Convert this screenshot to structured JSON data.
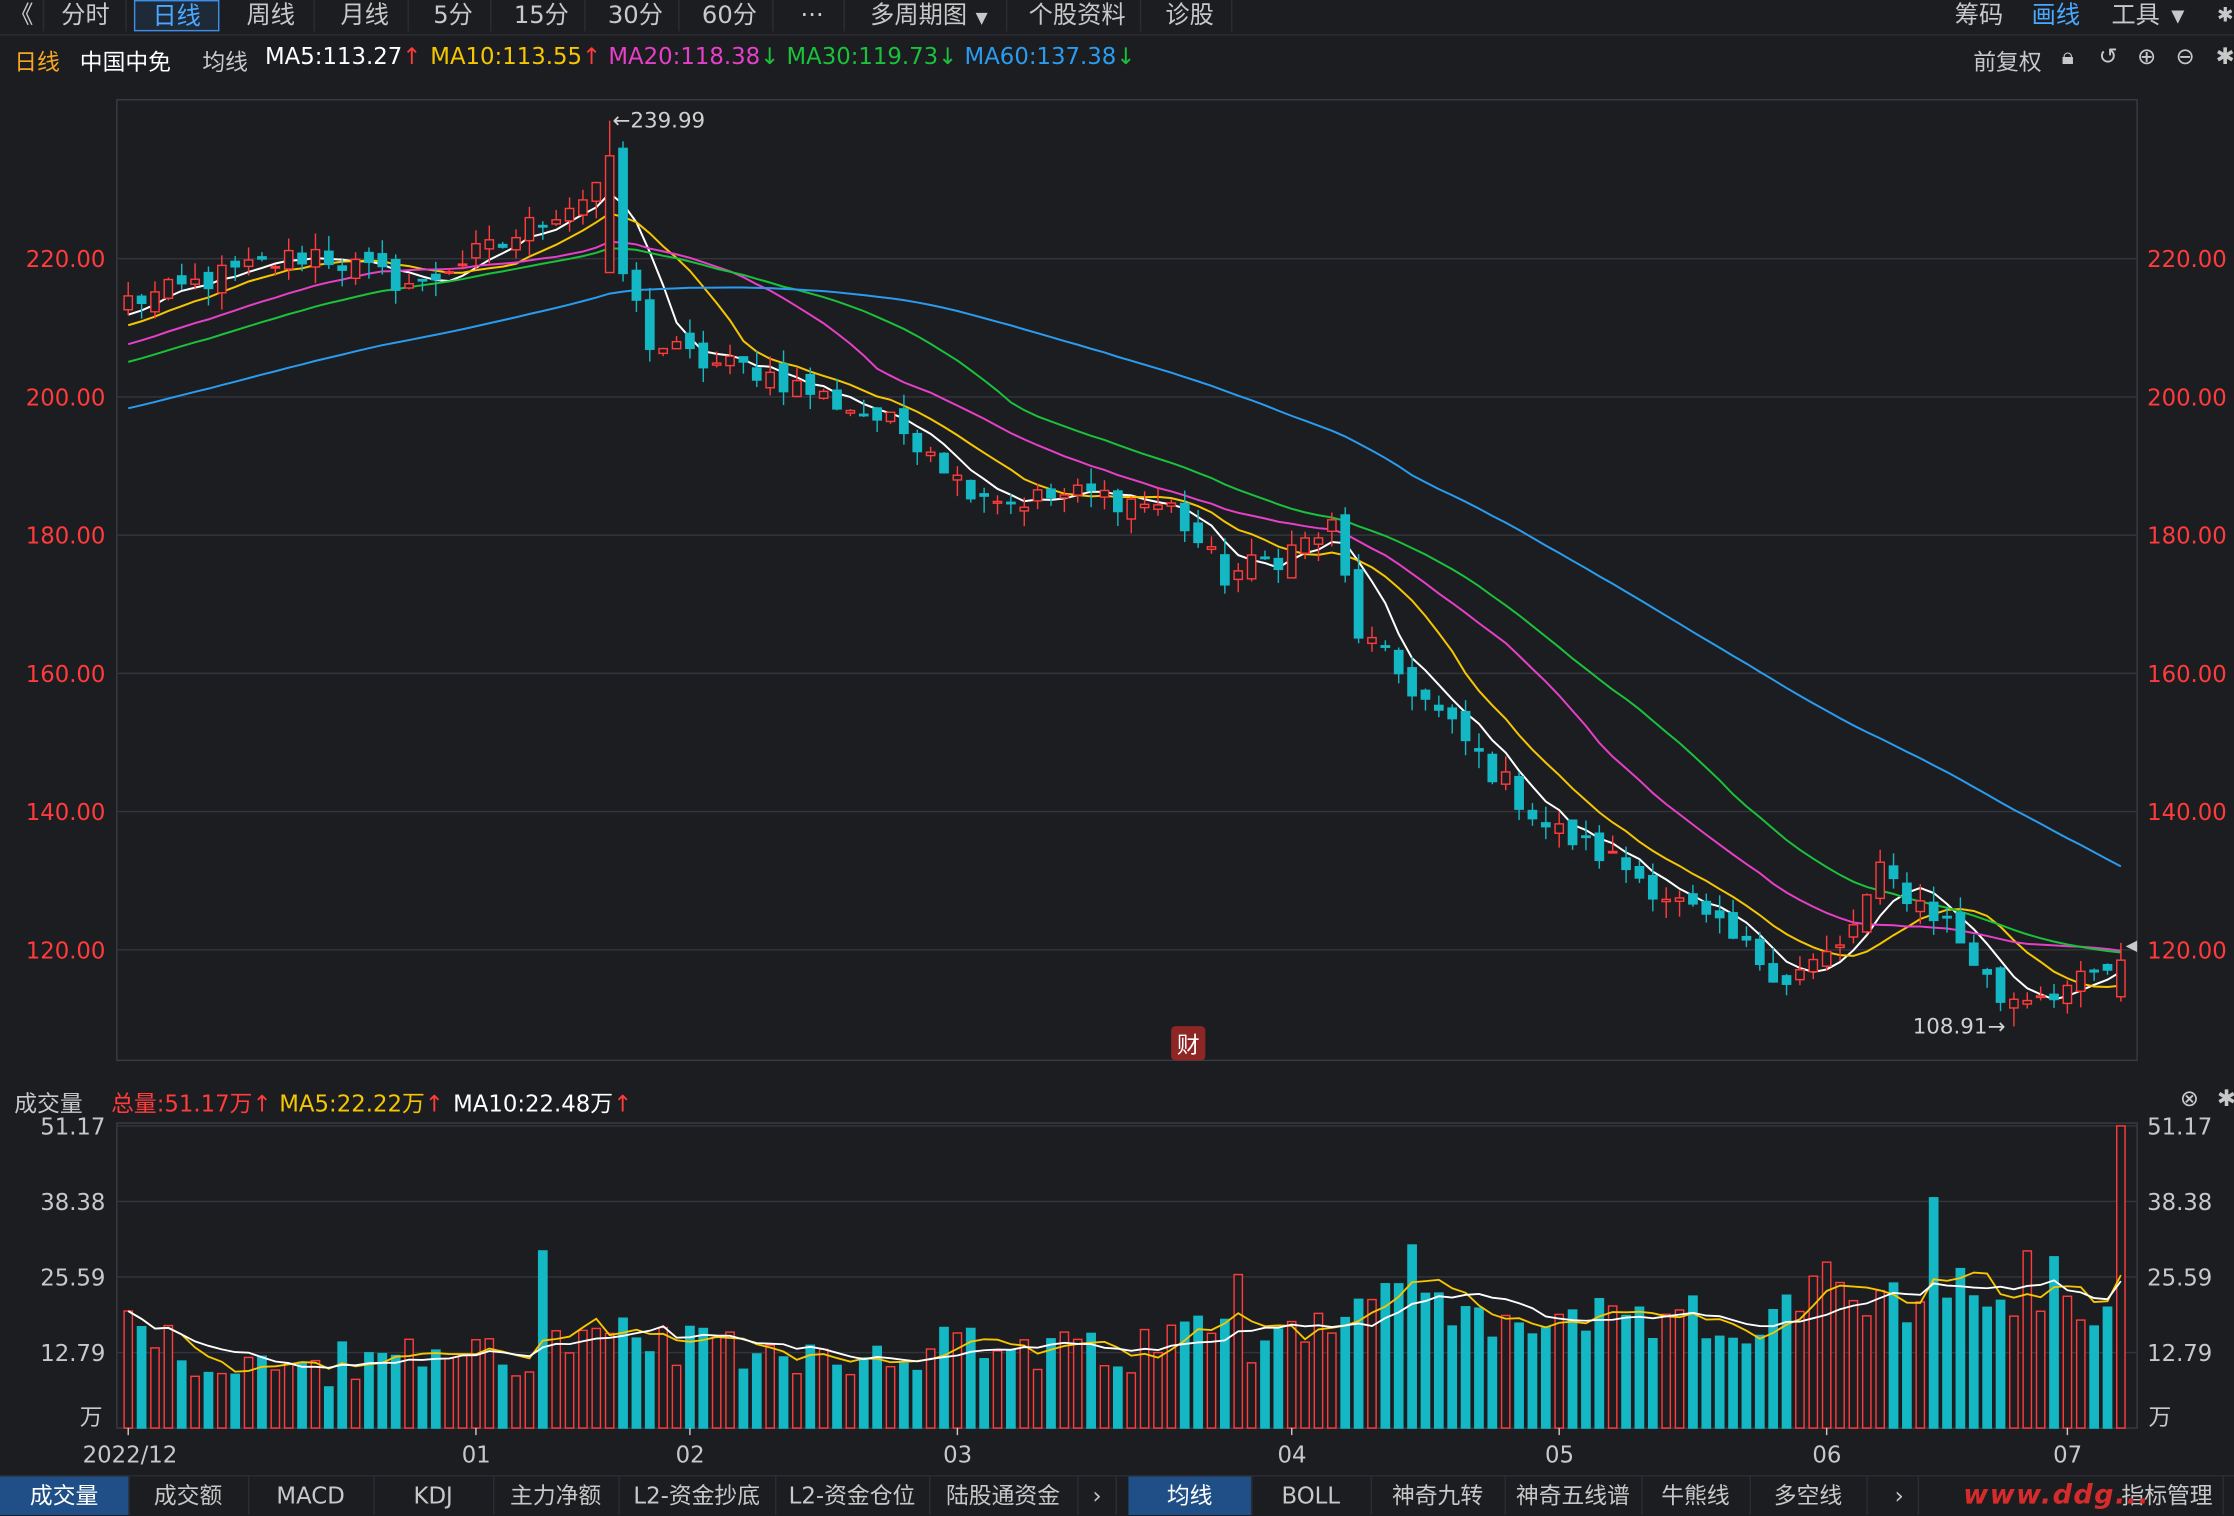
{
  "toolbar": {
    "back": "《",
    "tabs": [
      "分时",
      "日线",
      "周线",
      "月线",
      "5分",
      "15分",
      "30分",
      "60分",
      "···",
      "多周期图",
      "个股资料",
      "诊股"
    ],
    "active_tab": "日线",
    "right": [
      "筹码",
      "画线",
      "工具"
    ]
  },
  "ma_header": {
    "period": "日线",
    "stock": "中国中免",
    "label": "均线",
    "ma5": "MA5:113.27",
    "ma10": "MA10:113.55",
    "ma20": "MA20:118.38",
    "ma30": "MA30:119.73",
    "ma60": "MA60:137.38",
    "adjust": "前复权"
  },
  "vol_header": {
    "label": "成交量",
    "total": "总量:51.17万",
    "ma5": "MA5:22.22万",
    "ma10": "MA10:22.48万"
  },
  "bottom_tabs_left": [
    "成交量",
    "成交额",
    "MACD",
    "KDJ",
    "主力净额",
    "L2-资金抄底",
    "L2-资金仓位",
    "陆股通资金"
  ],
  "bottom_tabs_right": [
    "均线",
    "BOLL",
    "神奇九转",
    "神奇五线谱",
    "牛熊线",
    "多空线",
    "指标管理"
  ],
  "watermark": "www.ddg...",
  "colors": {
    "up": "#ff3b3b",
    "down": "#14b8c4",
    "ma5": "#ffffff",
    "ma10": "#f6c600",
    "ma20": "#e640c8",
    "ma30": "#19c23a",
    "ma60": "#2a9cf0"
  },
  "chart_data": {
    "type": "candlestick",
    "price_axis": {
      "min": 104,
      "max": 243,
      "ticks": [
        "220.00",
        "200.00",
        "180.00",
        "160.00",
        "140.00",
        "120.00"
      ]
    },
    "volume_axis": {
      "min": 0,
      "max": 51.17,
      "unit": "万",
      "ticks": [
        "51.17",
        "38.38",
        "25.59",
        "12.79"
      ]
    },
    "x_labels": [
      "2022/12",
      "01",
      "02",
      "03",
      "04",
      "05",
      "06",
      "07"
    ],
    "annotations": {
      "high": "←239.99",
      "low": "108.91→",
      "finance_badge": "财"
    },
    "waypoints": [
      [
        0,
        214
      ],
      [
        3,
        215
      ],
      [
        6,
        217
      ],
      [
        10,
        219
      ],
      [
        14,
        221
      ],
      [
        18,
        218
      ],
      [
        22,
        216
      ],
      [
        24,
        219
      ],
      [
        28,
        222
      ],
      [
        31,
        226
      ],
      [
        34,
        229
      ],
      [
        36,
        233
      ],
      [
        37,
        218
      ],
      [
        39,
        208
      ],
      [
        43,
        205
      ],
      [
        47,
        204
      ],
      [
        52,
        200
      ],
      [
        56,
        197
      ],
      [
        60,
        193
      ],
      [
        62,
        188
      ],
      [
        66,
        185
      ],
      [
        72,
        186
      ],
      [
        78,
        184
      ],
      [
        82,
        174
      ],
      [
        86,
        177
      ],
      [
        90,
        181
      ],
      [
        92,
        166
      ],
      [
        96,
        158
      ],
      [
        100,
        150
      ],
      [
        106,
        138
      ],
      [
        112,
        132
      ],
      [
        118,
        124
      ],
      [
        124,
        116
      ],
      [
        128,
        120
      ],
      [
        131,
        131
      ],
      [
        136,
        124
      ],
      [
        140,
        113
      ],
      [
        146,
        115
      ],
      [
        149,
        118
      ]
    ],
    "volume_waypoints": [
      [
        0,
        20
      ],
      [
        5,
        12
      ],
      [
        10,
        10
      ],
      [
        18,
        11
      ],
      [
        22,
        12
      ],
      [
        24,
        14
      ],
      [
        30,
        12
      ],
      [
        32,
        14
      ],
      [
        38,
        15
      ],
      [
        43,
        13
      ],
      [
        50,
        13
      ],
      [
        55,
        12
      ],
      [
        60,
        14
      ],
      [
        66,
        13
      ],
      [
        75,
        12
      ],
      [
        77,
        15
      ],
      [
        80,
        17
      ],
      [
        84,
        15
      ],
      [
        88,
        18
      ],
      [
        92,
        21
      ],
      [
        95,
        22
      ],
      [
        99,
        19
      ],
      [
        104,
        17
      ],
      [
        108,
        20
      ],
      [
        112,
        16
      ],
      [
        116,
        19
      ],
      [
        120,
        17
      ],
      [
        124,
        19
      ],
      [
        127,
        25
      ],
      [
        130,
        23
      ],
      [
        134,
        19
      ],
      [
        138,
        22
      ],
      [
        142,
        23
      ],
      [
        146,
        18
      ],
      [
        148,
        24
      ]
    ],
    "volume_spikes": [
      [
        31,
        30
      ],
      [
        83,
        26
      ],
      [
        96,
        31
      ],
      [
        116,
        20
      ],
      [
        130,
        19
      ],
      [
        135,
        39
      ],
      [
        137,
        27
      ],
      [
        142,
        30
      ],
      [
        144,
        29
      ],
      [
        149,
        51.17
      ]
    ]
  }
}
